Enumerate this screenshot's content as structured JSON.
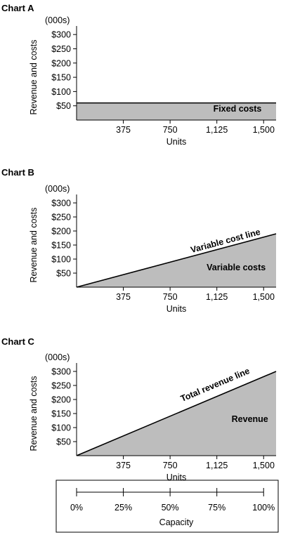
{
  "chart_data": [
    {
      "type": "area",
      "title": "Chart A",
      "units_label": "(000s)",
      "xlabel": "Units",
      "ylabel": "Revenue and costs",
      "x_ticks": [
        "375",
        "750",
        "1,125",
        "1,500"
      ],
      "x_tick_values": [
        375,
        750,
        1125,
        1500
      ],
      "y_ticks": [
        "$50",
        "$100",
        "$150",
        "$200",
        "$250",
        "$300"
      ],
      "y_tick_values": [
        50,
        100,
        150,
        200,
        250,
        300
      ],
      "xlim": [
        0,
        1600
      ],
      "ylim": [
        0,
        330
      ],
      "series": [
        {
          "name": "Fixed costs",
          "x": [
            0,
            1600
          ],
          "y": [
            60,
            60
          ],
          "fill": "#bdbdbd"
        }
      ],
      "annotations": [
        {
          "text": "Fixed costs",
          "x": 1290,
          "y": 30
        }
      ]
    },
    {
      "type": "area",
      "title": "Chart B",
      "units_label": "(000s)",
      "xlabel": "Units",
      "ylabel": "Revenue and costs",
      "x_ticks": [
        "375",
        "750",
        "1,125",
        "1,500"
      ],
      "x_tick_values": [
        375,
        750,
        1125,
        1500
      ],
      "y_ticks": [
        "$50",
        "$100",
        "$150",
        "$200",
        "$250",
        "$300"
      ],
      "y_tick_values": [
        50,
        100,
        150,
        200,
        250,
        300
      ],
      "xlim": [
        0,
        1600
      ],
      "ylim": [
        0,
        330
      ],
      "series": [
        {
          "name": "Variable costs",
          "x": [
            0,
            1600
          ],
          "y": [
            0,
            190
          ],
          "fill": "#bdbdbd"
        }
      ],
      "annotations": [
        {
          "text": "Variable cost line",
          "x": 1200,
          "y": 155,
          "rotate": true
        },
        {
          "text": "Variable costs",
          "x": 1280,
          "y": 60
        }
      ]
    },
    {
      "type": "area",
      "title": "Chart C",
      "units_label": "(000s)",
      "xlabel": "Units",
      "ylabel": "Revenue and costs",
      "x_ticks": [
        "375",
        "750",
        "1,125",
        "1,500"
      ],
      "x_tick_values": [
        375,
        750,
        1125,
        1500
      ],
      "y_ticks": [
        "$50",
        "$100",
        "$150",
        "$200",
        "$250",
        "$300"
      ],
      "y_tick_values": [
        50,
        100,
        150,
        200,
        250,
        300
      ],
      "xlim": [
        0,
        1600
      ],
      "ylim": [
        0,
        330
      ],
      "series": [
        {
          "name": "Revenue",
          "x": [
            0,
            1600
          ],
          "y": [
            0,
            300
          ],
          "fill": "#bdbdbd"
        }
      ],
      "annotations": [
        {
          "text": "Total revenue line",
          "x": 1120,
          "y": 243,
          "rotate": true
        },
        {
          "text": "Revenue",
          "x": 1390,
          "y": 120
        }
      ]
    }
  ],
  "capacity_scale": {
    "label": "Capacity",
    "ticks": [
      "0%",
      "25%",
      "50%",
      "75%",
      "100%"
    ],
    "tick_values": [
      0,
      375,
      750,
      1125,
      1500
    ]
  }
}
